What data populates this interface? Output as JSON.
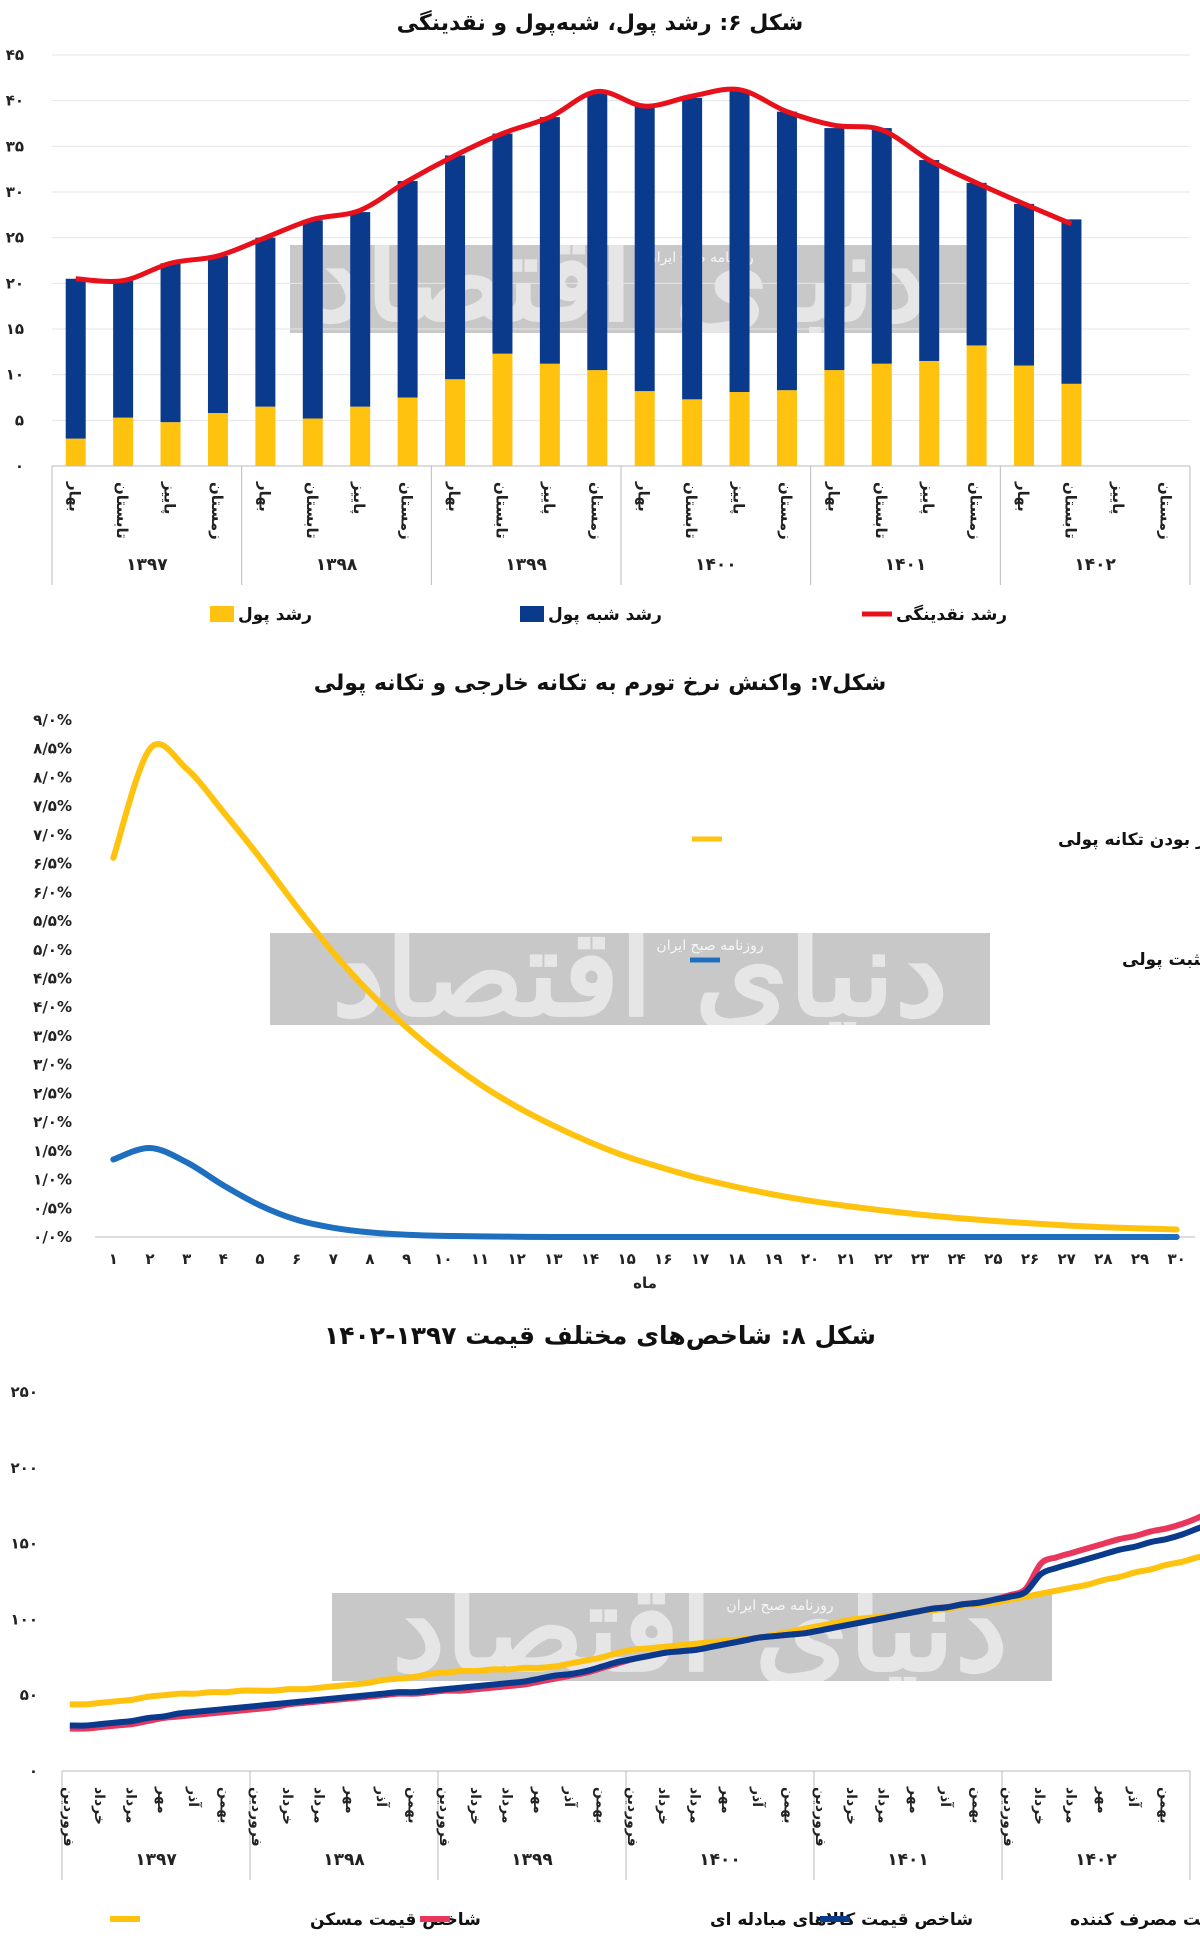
{
  "chart_data": [
    {
      "type": "bar",
      "title": "شکل ۶: رشد پول، شبه‌پول و نقدینگی",
      "seasons": [
        "بهار",
        "تابستان",
        "پاییز",
        "زمستان"
      ],
      "years": [
        "۱۳۹۷",
        "۱۳۹۸",
        "۱۳۹۹",
        "۱۴۰۰",
        "۱۴۰۱",
        "۱۴۰۲"
      ],
      "y_ticks": [
        "۰",
        "۵",
        "۱۰",
        "۱۵",
        "۲۰",
        "۲۵",
        "۳۰",
        "۳۵",
        "۴۰",
        "۴۵"
      ],
      "ylim": [
        0,
        45
      ],
      "legend": {
        "money": "رشد پول",
        "quasi": "رشد شبه پول",
        "liquidity": "رشد نقدینگی"
      },
      "colors": {
        "money": "#FFC20E",
        "quasi": "#0A3A8C",
        "liquidity": "#E8111B"
      },
      "series": [
        {
          "name": "رشد پول",
          "values": [
            3,
            5.3,
            4.8,
            5.8,
            6.5,
            5.2,
            6.5,
            7.5,
            9.5,
            12.3,
            11.2,
            10.5,
            8.2,
            7.3,
            8.1,
            8.3,
            10.5,
            11.2,
            11.5,
            13.2,
            11,
            9,
            null,
            null
          ]
        },
        {
          "name": "رشد شبه پول",
          "values": [
            17.5,
            15,
            17.4,
            17.2,
            18.5,
            21.7,
            21.3,
            23.7,
            24.5,
            24.1,
            27,
            30.5,
            31.2,
            33,
            33.1,
            30.5,
            26.5,
            25.8,
            22,
            17.8,
            17.7,
            18,
            null,
            null
          ]
        },
        {
          "name": "رشد نقدینگی",
          "values": [
            20.5,
            20.3,
            22.2,
            23,
            25,
            27,
            28,
            31.2,
            34,
            36.4,
            38.2,
            41,
            39.4,
            40.5,
            41.2,
            38.8,
            37.3,
            36.8,
            33.5,
            31,
            28.7,
            26.5,
            null,
            null
          ]
        }
      ]
    },
    {
      "type": "line",
      "title": "شکل۷: واکنش نرخ تورم به تکانه خارجی و تکانه پولی",
      "xlabel": "ماه",
      "x": [
        "۱",
        "۲",
        "۳",
        "۴",
        "۵",
        "۶",
        "۷",
        "۸",
        "۹",
        "۱۰",
        "۱۱",
        "۱۲",
        "۱۳",
        "۱۴",
        "۱۵",
        "۱۶",
        "۱۷",
        "۱۸",
        "۱۹",
        "۲۰",
        "۲۱",
        "۲۲",
        "۲۳",
        "۲۴",
        "۲۵",
        "۲۶",
        "۲۷",
        "۲۸",
        "۲۹",
        "۳۰"
      ],
      "y_ticks": [
        "۰/۰%",
        "۰/۵%",
        "۱/۰%",
        "۱/۵%",
        "۲/۰%",
        "۲/۵%",
        "۳/۰%",
        "۳/۵%",
        "۴/۰%",
        "۴/۵%",
        "۵/۰%",
        "۵/۵%",
        "۶/۰%",
        "۶/۵%",
        "۷/۰%",
        "۷/۵%",
        "۸/۰%",
        "۸/۵%",
        "۹/۰%"
      ],
      "ylim": [
        0,
        9
      ],
      "series": [
        {
          "name": "اعمال تکانه خارجی و صفر بودن تکانه پولی",
          "color": "#FFC20E",
          "values": [
            6.6,
            8.5,
            8.15,
            7.4,
            6.6,
            5.75,
            4.95,
            4.25,
            3.65,
            3.12,
            2.66,
            2.27,
            1.94,
            1.65,
            1.4,
            1.2,
            1.02,
            0.87,
            0.74,
            0.63,
            0.54,
            0.46,
            0.39,
            0.33,
            0.28,
            0.24,
            0.2,
            0.17,
            0.15,
            0.13
          ]
        },
        {
          "name": "با صفرکردن تکانه خارجی و اعمال تکانه مثبت پولی",
          "color": "#1F6FC0",
          "values": [
            1.35,
            1.55,
            1.3,
            0.9,
            0.55,
            0.3,
            0.16,
            0.08,
            0.04,
            0.02,
            0.01,
            0.005,
            0,
            0,
            0,
            0,
            0,
            0,
            0,
            0,
            0,
            0,
            0,
            0,
            0,
            0,
            0,
            0,
            0,
            0
          ]
        }
      ]
    },
    {
      "type": "line",
      "title": "شکل ۸: شاخص‌های مختلف قیمت ۱۳۹۷-۱۴۰۲",
      "months": [
        "فروردین",
        "خرداد",
        "مرداد",
        "مهر",
        "آذر",
        "بهمن"
      ],
      "years": [
        "۱۳۹۷",
        "۱۳۹۸",
        "۱۳۹۹",
        "۱۴۰۰",
        "۱۴۰۱",
        "۱۴۰۲"
      ],
      "y_ticks": [
        "۰",
        "۵۰",
        "۱۰۰",
        "۱۵۰",
        "۲۰۰",
        "۲۵۰"
      ],
      "ylim": [
        0,
        250
      ],
      "note": "index values sampled every month, 1397/01 to 1402/09",
      "series": [
        {
          "name": "شاخص قیمت مسکن",
          "color": "#FFC20E",
          "values": [
            44,
            44,
            45,
            46,
            47,
            49,
            50,
            51,
            51,
            52,
            52,
            53,
            53,
            53,
            54,
            54,
            55,
            56,
            57,
            58,
            60,
            61,
            62,
            64,
            65,
            66,
            66,
            67,
            67,
            68,
            68,
            69,
            71,
            73,
            75,
            78,
            80,
            81,
            82,
            83,
            84,
            85,
            86,
            87,
            88,
            90,
            92,
            94,
            96,
            98,
            100,
            101,
            102,
            103,
            105,
            106,
            107,
            109,
            110,
            111,
            113,
            115,
            117,
            119,
            121,
            123,
            126,
            128,
            131,
            133,
            136,
            138,
            141,
            143,
            145,
            147,
            149,
            151,
            153,
            156,
            159,
            162,
            165,
            169,
            173,
            177,
            183,
            189,
            196,
            200
          ]
        },
        {
          "name": "شاخص قیمت کالاهای مبادله ای",
          "color": "#E8365D",
          "values": [
            28,
            28,
            29,
            30,
            31,
            33,
            35,
            36,
            37,
            38,
            39,
            40,
            41,
            42,
            44,
            45,
            46,
            47,
            48,
            49,
            50,
            51,
            51,
            52,
            53,
            53,
            54,
            55,
            56,
            57,
            59,
            61,
            63,
            65,
            68,
            71,
            74,
            76,
            78,
            79,
            80,
            82,
            84,
            86,
            88,
            89,
            90,
            91,
            93,
            95,
            97,
            99,
            101,
            103,
            105,
            107,
            108,
            110,
            111,
            113,
            116,
            120,
            137,
            141,
            144,
            147,
            150,
            153,
            155,
            158,
            160,
            163,
            167,
            172,
            182,
            190,
            198,
            203,
            206,
            210,
            214,
            218,
            221,
            224,
            227,
            229,
            231,
            233,
            236,
            240
          ]
        },
        {
          "name": "شاخص قیمت مصرف کننده",
          "color": "#0A3A8C",
          "values": [
            30,
            30,
            31,
            32,
            33,
            35,
            36,
            38,
            39,
            40,
            41,
            42,
            43,
            44,
            45,
            46,
            47,
            48,
            49,
            50,
            51,
            52,
            52,
            53,
            54,
            55,
            56,
            57,
            58,
            59,
            61,
            63,
            64,
            66,
            69,
            72,
            74,
            76,
            78,
            79,
            80,
            82,
            84,
            86,
            88,
            89,
            90,
            91,
            93,
            95,
            97,
            99,
            101,
            103,
            105,
            107,
            108,
            110,
            111,
            113,
            115,
            118,
            130,
            134,
            137,
            140,
            143,
            146,
            148,
            151,
            153,
            156,
            160,
            164,
            172,
            178,
            183,
            188,
            192,
            195,
            199,
            203,
            206,
            209,
            212,
            215,
            218,
            221,
            225,
            229
          ]
        }
      ]
    }
  ],
  "watermark": {
    "big": "دنیای اقتصاد",
    "small": "روزنامه صبح ایران"
  }
}
